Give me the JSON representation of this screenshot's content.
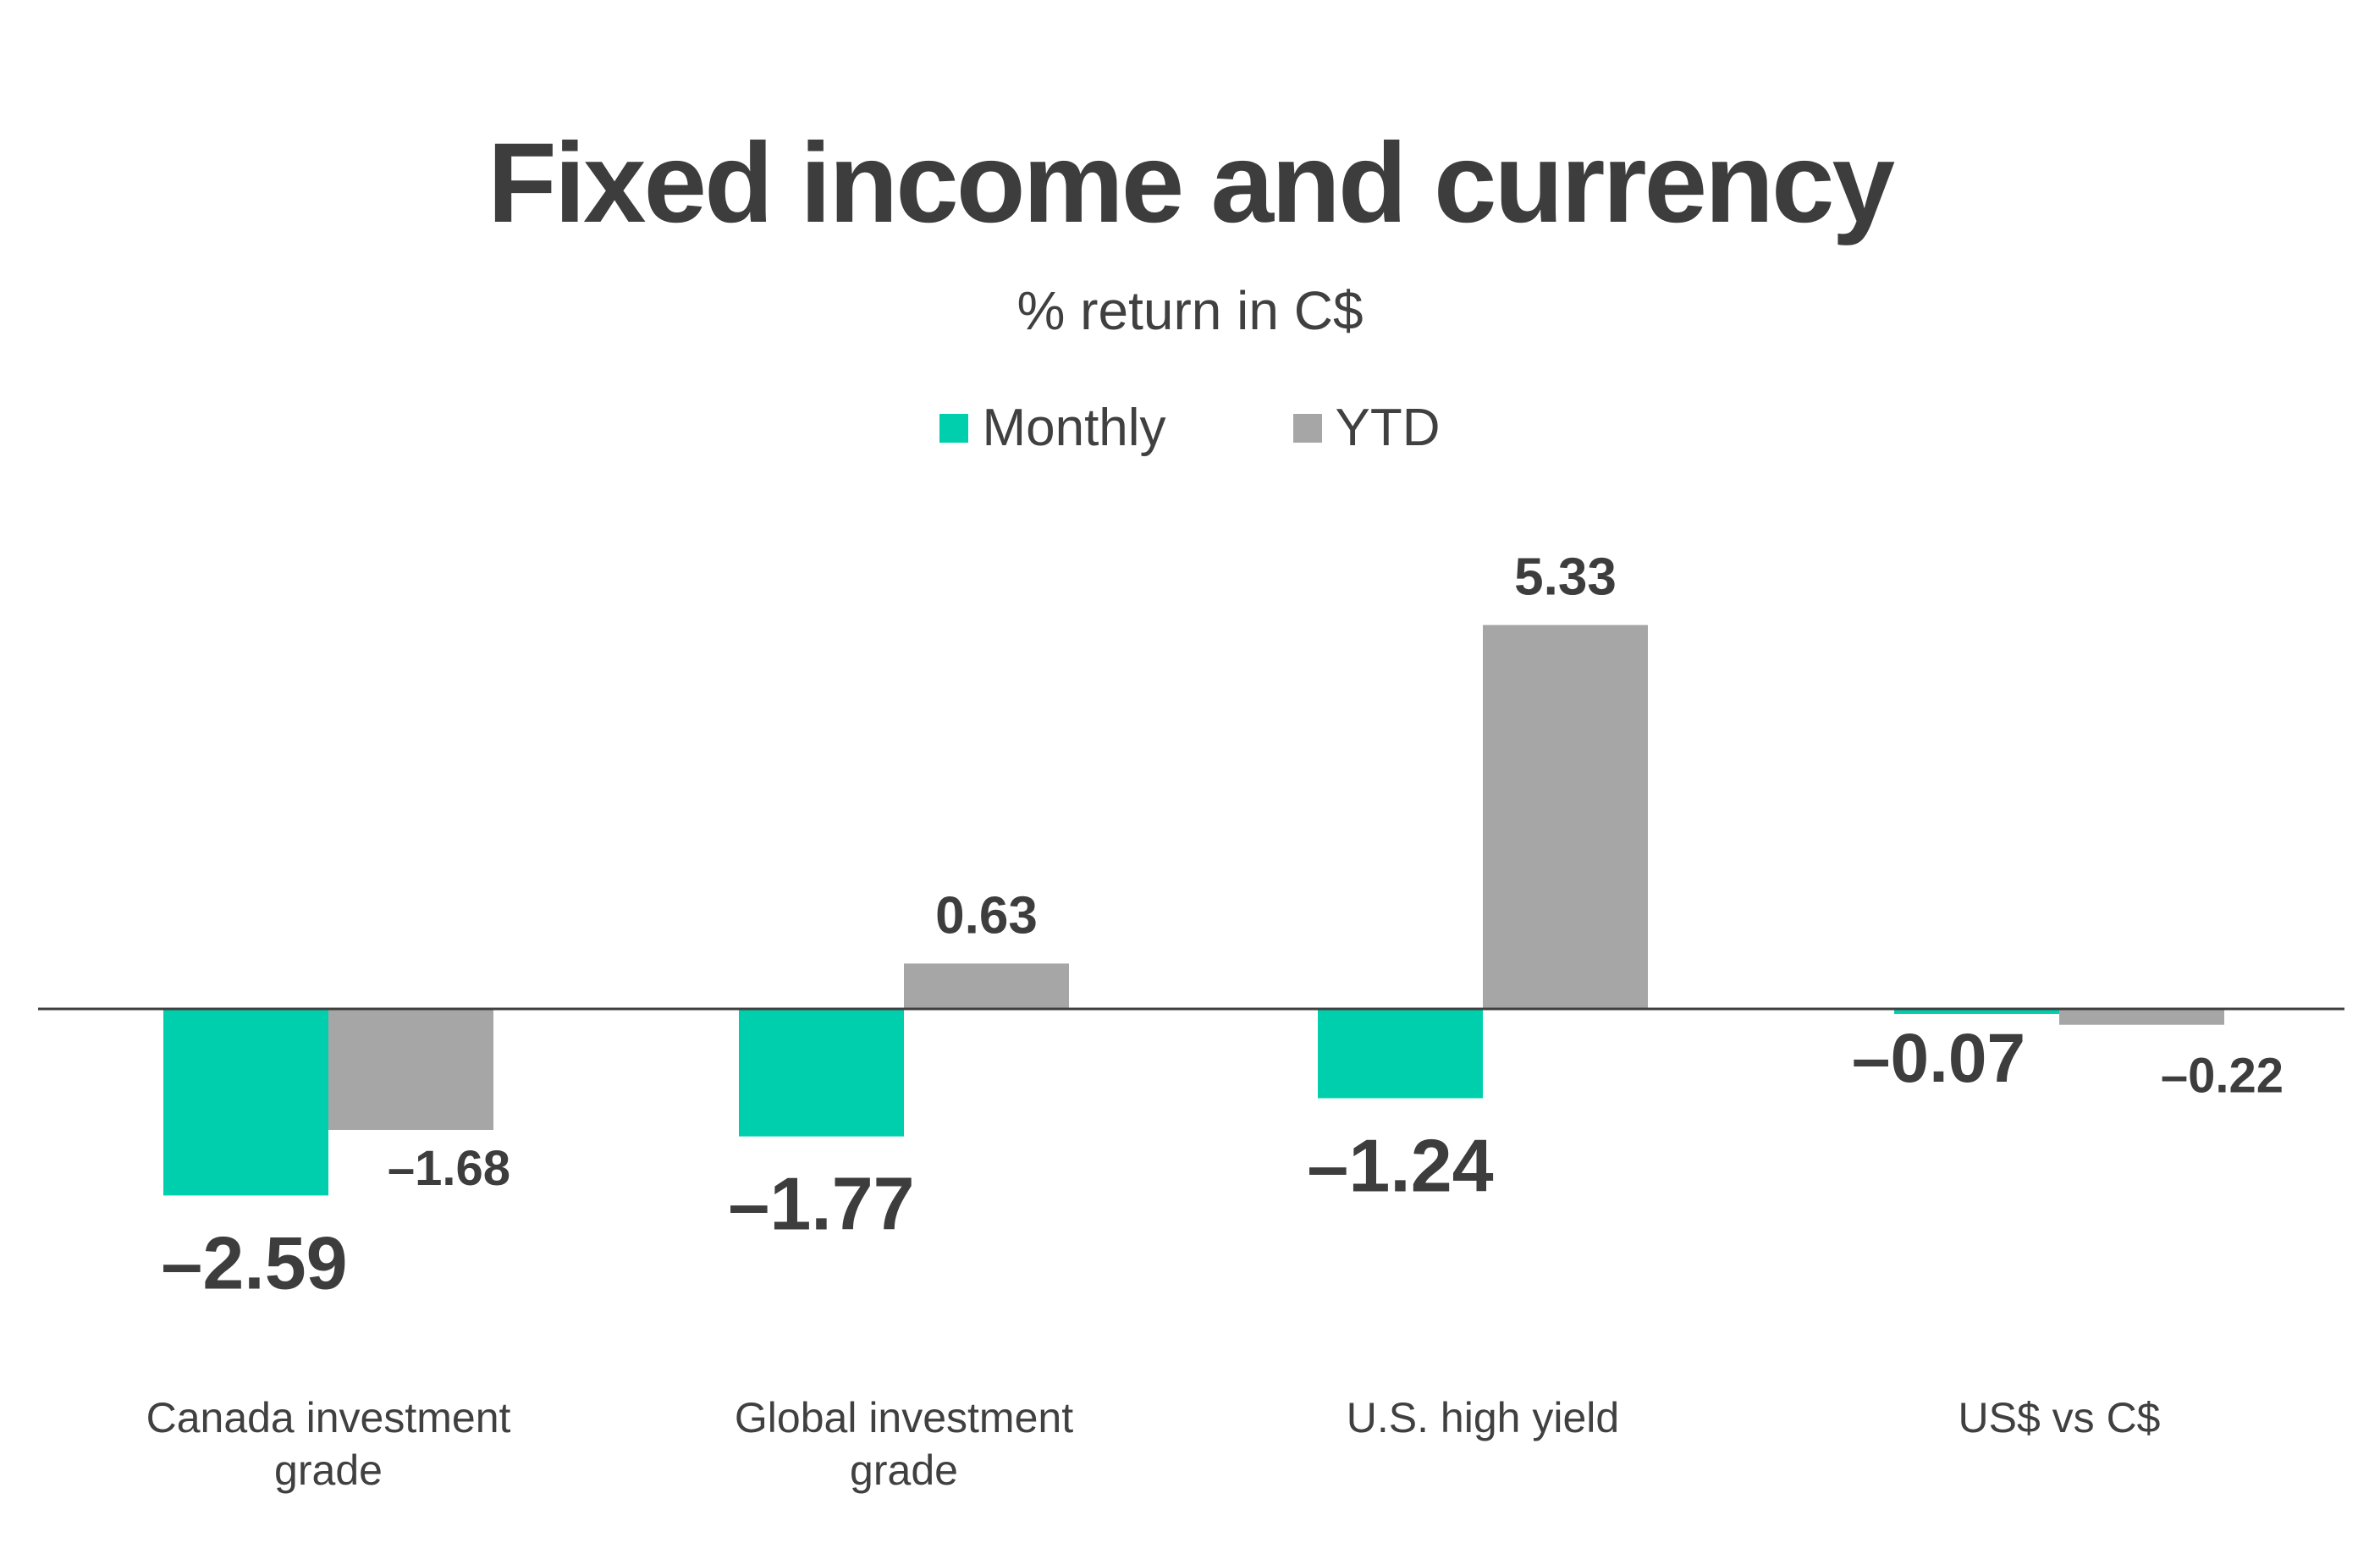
{
  "chart_data": {
    "type": "bar",
    "title": "Fixed income and currency",
    "subtitle": "% return in C$",
    "categories": [
      [
        "Canada investment",
        "grade"
      ],
      [
        "Global investment",
        "grade"
      ],
      [
        "U.S. high yield"
      ],
      [
        "US$ vs C$"
      ]
    ],
    "series": [
      {
        "name": "Monthly",
        "color": "#00cfad",
        "values": [
          -2.59,
          -1.77,
          -1.24,
          -0.07
        ],
        "labels": [
          "-2.59",
          "-1.77",
          "-1.24",
          "-0.07"
        ]
      },
      {
        "name": "YTD",
        "color": "#a6a6a6",
        "values": [
          -1.68,
          0.63,
          5.33,
          -0.22
        ],
        "labels": [
          "-1.68",
          "0.63",
          "5.33",
          "-0.22"
        ]
      }
    ],
    "ylim": [
      -2.59,
      5.33
    ],
    "legend": "top-center",
    "grid": false,
    "axis_color": "#404040"
  }
}
